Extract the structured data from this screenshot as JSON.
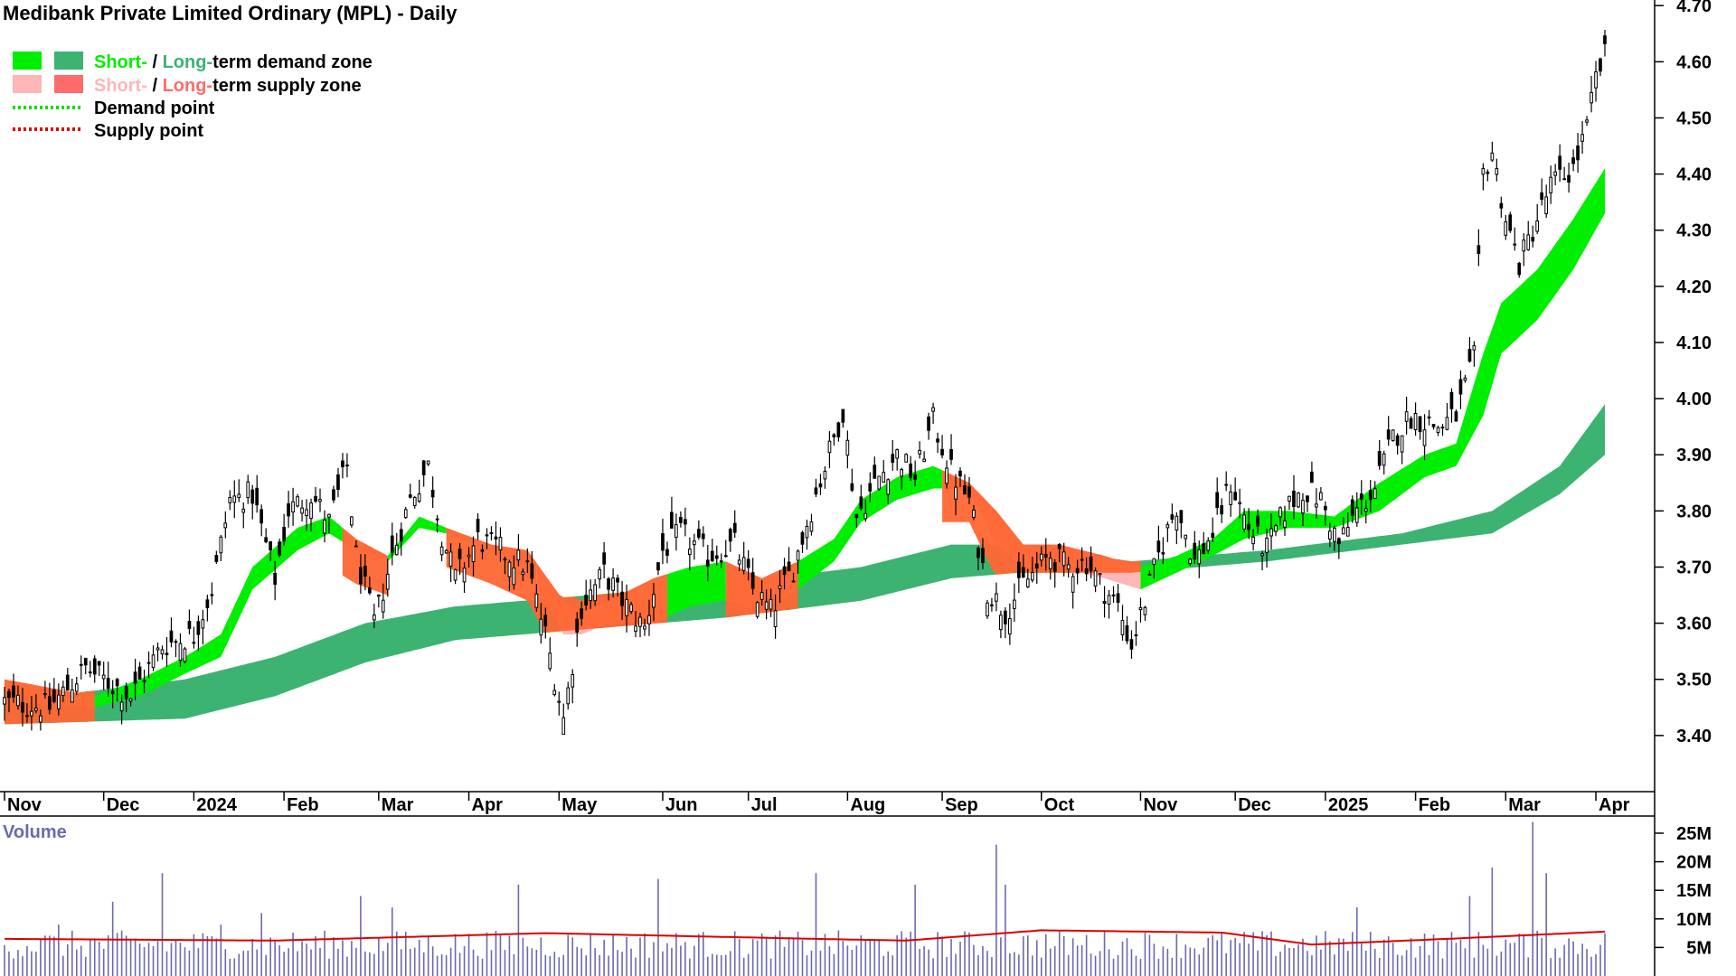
{
  "colors": {
    "short_demand": "#00ee00",
    "long_demand": "#3cb371",
    "short_supply": "#ffb6b6",
    "long_supply": "#ff6633",
    "demand_point": "#00dd00",
    "supply_point": "#dd0000",
    "volume_bar": "#6a6ab0",
    "volume_avg": "#dd0000",
    "candle": "#000000"
  },
  "chart_data": {
    "type": "candlestick",
    "title": "Medibank Private Limited Ordinary (MPL) - Daily",
    "legend": {
      "placement": "top-left",
      "items": [
        {
          "key": "demand_zone",
          "short": "Short-",
          "sep": " / ",
          "long": "Long-",
          "rest": "term demand zone"
        },
        {
          "key": "supply_zone",
          "short": "Short-",
          "sep": " / ",
          "long": "Long-",
          "rest": "term supply zone"
        },
        {
          "key": "demand_point",
          "label": "Demand point"
        },
        {
          "key": "supply_point",
          "label": "Supply point"
        }
      ]
    },
    "price_axis": {
      "range": [
        3.3,
        4.71
      ],
      "ticks": [
        3.4,
        3.5,
        3.6,
        3.7,
        3.8,
        3.9,
        4.0,
        4.1,
        4.2,
        4.3,
        4.4,
        4.5,
        4.6,
        4.7
      ],
      "tick_labels": [
        "3.40",
        "3.50",
        "3.60",
        "3.70",
        "3.80",
        "3.90",
        "4.00",
        "4.10",
        "4.20",
        "4.30",
        "4.40",
        "4.50",
        "4.60",
        "4.70"
      ]
    },
    "x_axis": {
      "labels": [
        "Nov",
        "Dec",
        "2024",
        "Feb",
        "Mar",
        "Apr",
        "May",
        "Jun",
        "Jul",
        "Aug",
        "Sep",
        "Oct",
        "Nov",
        "Dec",
        "2025",
        "Feb",
        "Mar",
        "Apr"
      ],
      "label_at_day": [
        0,
        22,
        42,
        62,
        83,
        103,
        123,
        146,
        165,
        187,
        208,
        230,
        252,
        273,
        293,
        313,
        333,
        353
      ]
    },
    "day_count": 356,
    "price_path": [
      [
        0,
        3.46
      ],
      [
        10,
        3.45
      ],
      [
        18,
        3.52
      ],
      [
        28,
        3.47
      ],
      [
        35,
        3.56
      ],
      [
        42,
        3.58
      ],
      [
        46,
        3.66
      ],
      [
        50,
        3.82
      ],
      [
        55,
        3.83
      ],
      [
        60,
        3.68
      ],
      [
        63,
        3.8
      ],
      [
        68,
        3.83
      ],
      [
        72,
        3.78
      ],
      [
        76,
        3.88
      ],
      [
        78,
        3.72
      ],
      [
        82,
        3.6
      ],
      [
        86,
        3.72
      ],
      [
        90,
        3.82
      ],
      [
        94,
        3.88
      ],
      [
        97,
        3.76
      ],
      [
        100,
        3.68
      ],
      [
        105,
        3.75
      ],
      [
        110,
        3.73
      ],
      [
        116,
        3.7
      ],
      [
        120,
        3.58
      ],
      [
        124,
        3.43
      ],
      [
        128,
        3.63
      ],
      [
        133,
        3.69
      ],
      [
        138,
        3.63
      ],
      [
        142,
        3.59
      ],
      [
        146,
        3.73
      ],
      [
        150,
        3.76
      ],
      [
        156,
        3.72
      ],
      [
        162,
        3.74
      ],
      [
        166,
        3.66
      ],
      [
        170,
        3.62
      ],
      [
        175,
        3.7
      ],
      [
        180,
        3.83
      ],
      [
        186,
        3.98
      ],
      [
        189,
        3.79
      ],
      [
        194,
        3.86
      ],
      [
        198,
        3.9
      ],
      [
        202,
        3.86
      ],
      [
        206,
        3.96
      ],
      [
        210,
        3.87
      ],
      [
        214,
        3.82
      ],
      [
        218,
        3.66
      ],
      [
        222,
        3.62
      ],
      [
        226,
        3.67
      ],
      [
        232,
        3.72
      ],
      [
        236,
        3.7
      ],
      [
        240,
        3.71
      ],
      [
        244,
        3.66
      ],
      [
        247,
        3.63
      ],
      [
        250,
        3.56
      ],
      [
        253,
        3.64
      ],
      [
        256,
        3.72
      ],
      [
        260,
        3.81
      ],
      [
        264,
        3.71
      ],
      [
        268,
        3.76
      ],
      [
        272,
        3.85
      ],
      [
        276,
        3.77
      ],
      [
        280,
        3.73
      ],
      [
        284,
        3.8
      ],
      [
        288,
        3.84
      ],
      [
        292,
        3.82
      ],
      [
        296,
        3.74
      ],
      [
        300,
        3.8
      ],
      [
        304,
        3.84
      ],
      [
        308,
        3.93
      ],
      [
        312,
        3.97
      ],
      [
        318,
        3.95
      ],
      [
        322,
        3.97
      ],
      [
        326,
        4.07
      ],
      [
        328,
        4.4
      ],
      [
        330,
        4.44
      ],
      [
        333,
        4.32
      ],
      [
        336,
        4.24
      ],
      [
        339,
        4.3
      ],
      [
        343,
        4.38
      ],
      [
        348,
        4.41
      ],
      [
        351,
        4.48
      ],
      [
        353,
        4.57
      ],
      [
        355,
        4.61
      ]
    ],
    "long_demand_upper": [
      [
        0,
        3.46
      ],
      [
        40,
        3.5
      ],
      [
        60,
        3.54
      ],
      [
        80,
        3.6
      ],
      [
        100,
        3.63
      ],
      [
        130,
        3.65
      ],
      [
        160,
        3.67
      ],
      [
        190,
        3.7
      ],
      [
        210,
        3.74
      ],
      [
        225,
        3.74
      ],
      [
        250,
        3.71
      ],
      [
        280,
        3.73
      ],
      [
        310,
        3.76
      ],
      [
        330,
        3.8
      ],
      [
        345,
        3.88
      ],
      [
        355,
        3.99
      ]
    ],
    "long_demand_lower": [
      [
        0,
        3.42
      ],
      [
        40,
        3.43
      ],
      [
        60,
        3.47
      ],
      [
        80,
        3.53
      ],
      [
        100,
        3.57
      ],
      [
        130,
        3.59
      ],
      [
        160,
        3.61
      ],
      [
        190,
        3.64
      ],
      [
        210,
        3.68
      ],
      [
        225,
        3.69
      ],
      [
        250,
        3.69
      ],
      [
        280,
        3.71
      ],
      [
        310,
        3.74
      ],
      [
        330,
        3.76
      ],
      [
        345,
        3.83
      ],
      [
        355,
        3.9
      ]
    ],
    "short_band_upper": [
      [
        0,
        3.5
      ],
      [
        20,
        3.47
      ],
      [
        30,
        3.5
      ],
      [
        40,
        3.54
      ],
      [
        48,
        3.58
      ],
      [
        55,
        3.7
      ],
      [
        65,
        3.77
      ],
      [
        72,
        3.79
      ],
      [
        78,
        3.75
      ],
      [
        85,
        3.72
      ],
      [
        92,
        3.79
      ],
      [
        98,
        3.77
      ],
      [
        108,
        3.74
      ],
      [
        116,
        3.73
      ],
      [
        124,
        3.64
      ],
      [
        128,
        3.62
      ],
      [
        134,
        3.64
      ],
      [
        144,
        3.68
      ],
      [
        152,
        3.7
      ],
      [
        160,
        3.71
      ],
      [
        168,
        3.68
      ],
      [
        176,
        3.71
      ],
      [
        184,
        3.75
      ],
      [
        190,
        3.82
      ],
      [
        198,
        3.86
      ],
      [
        206,
        3.88
      ],
      [
        214,
        3.85
      ],
      [
        220,
        3.8
      ],
      [
        226,
        3.74
      ],
      [
        234,
        3.74
      ],
      [
        244,
        3.72
      ],
      [
        252,
        3.7
      ],
      [
        260,
        3.72
      ],
      [
        268,
        3.75
      ],
      [
        275,
        3.8
      ],
      [
        285,
        3.8
      ],
      [
        295,
        3.79
      ],
      [
        305,
        3.85
      ],
      [
        315,
        3.9
      ],
      [
        322,
        3.92
      ],
      [
        328,
        4.08
      ],
      [
        332,
        4.17
      ],
      [
        340,
        4.23
      ],
      [
        348,
        4.32
      ],
      [
        355,
        4.41
      ]
    ],
    "short_band_lower": [
      [
        0,
        3.46
      ],
      [
        20,
        3.45
      ],
      [
        30,
        3.47
      ],
      [
        40,
        3.51
      ],
      [
        48,
        3.54
      ],
      [
        55,
        3.66
      ],
      [
        65,
        3.73
      ],
      [
        72,
        3.76
      ],
      [
        78,
        3.73
      ],
      [
        85,
        3.71
      ],
      [
        92,
        3.77
      ],
      [
        98,
        3.76
      ],
      [
        108,
        3.73
      ],
      [
        116,
        3.7
      ],
      [
        124,
        3.58
      ],
      [
        128,
        3.58
      ],
      [
        134,
        3.6
      ],
      [
        144,
        3.6
      ],
      [
        152,
        3.63
      ],
      [
        160,
        3.64
      ],
      [
        168,
        3.62
      ],
      [
        176,
        3.66
      ],
      [
        184,
        3.71
      ],
      [
        190,
        3.78
      ],
      [
        198,
        3.82
      ],
      [
        206,
        3.84
      ],
      [
        214,
        3.84
      ],
      [
        220,
        3.74
      ],
      [
        226,
        3.7
      ],
      [
        234,
        3.7
      ],
      [
        244,
        3.68
      ],
      [
        252,
        3.66
      ],
      [
        260,
        3.69
      ],
      [
        268,
        3.72
      ],
      [
        275,
        3.75
      ],
      [
        285,
        3.77
      ],
      [
        295,
        3.77
      ],
      [
        305,
        3.8
      ],
      [
        315,
        3.86
      ],
      [
        322,
        3.88
      ],
      [
        328,
        3.97
      ],
      [
        332,
        4.08
      ],
      [
        340,
        4.14
      ],
      [
        348,
        4.23
      ],
      [
        355,
        4.33
      ]
    ],
    "short_band_state": [
      [
        0,
        20,
        "supply"
      ],
      [
        20,
        50,
        "demand"
      ],
      [
        50,
        75,
        "demand"
      ],
      [
        75,
        85,
        "supply"
      ],
      [
        85,
        98,
        "demand"
      ],
      [
        98,
        118,
        "supply"
      ],
      [
        118,
        147,
        "supply"
      ],
      [
        147,
        160,
        "demand"
      ],
      [
        160,
        176,
        "supply"
      ],
      [
        176,
        208,
        "demand"
      ],
      [
        208,
        252,
        "supply"
      ],
      [
        252,
        356,
        "demand"
      ]
    ],
    "volume_axis": {
      "label": "Volume",
      "range": [
        0,
        28
      ],
      "ticks": [
        5,
        10,
        15,
        20,
        25
      ],
      "tick_labels": [
        "5M",
        "10M",
        "15M",
        "20M",
        "25M"
      ]
    },
    "volume_spikes": [
      [
        12,
        9
      ],
      [
        24,
        13
      ],
      [
        35,
        18
      ],
      [
        48,
        9
      ],
      [
        57,
        11
      ],
      [
        79,
        14
      ],
      [
        86,
        12
      ],
      [
        114,
        16
      ],
      [
        145,
        17
      ],
      [
        180,
        18
      ],
      [
        202,
        16
      ],
      [
        220,
        23
      ],
      [
        222,
        16
      ],
      [
        300,
        12
      ],
      [
        325,
        14
      ],
      [
        330,
        19
      ],
      [
        339,
        27
      ],
      [
        342,
        18
      ]
    ],
    "volume_avg": [
      [
        0,
        6.5
      ],
      [
        60,
        6.2
      ],
      [
        120,
        7.5
      ],
      [
        180,
        6.5
      ],
      [
        200,
        6.2
      ],
      [
        230,
        8
      ],
      [
        270,
        7.6
      ],
      [
        290,
        5.5
      ],
      [
        320,
        6.5
      ],
      [
        356,
        7.8
      ]
    ]
  }
}
